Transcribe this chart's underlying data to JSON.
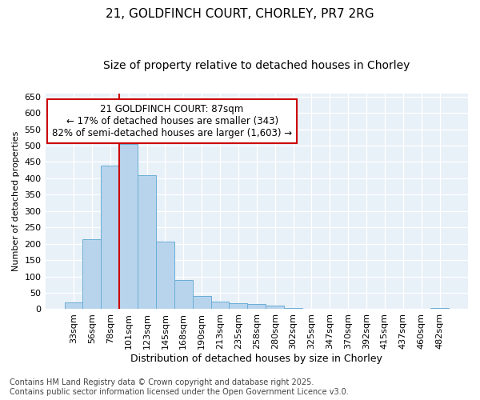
{
  "title1": "21, GOLDFINCH COURT, CHORLEY, PR7 2RG",
  "title2": "Size of property relative to detached houses in Chorley",
  "xlabel": "Distribution of detached houses by size in Chorley",
  "ylabel": "Number of detached properties",
  "categories": [
    "33sqm",
    "56sqm",
    "78sqm",
    "101sqm",
    "123sqm",
    "145sqm",
    "168sqm",
    "190sqm",
    "213sqm",
    "235sqm",
    "258sqm",
    "280sqm",
    "302sqm",
    "325sqm",
    "347sqm",
    "370sqm",
    "392sqm",
    "415sqm",
    "437sqm",
    "460sqm",
    "482sqm"
  ],
  "values": [
    20,
    215,
    440,
    505,
    410,
    207,
    88,
    40,
    22,
    18,
    15,
    12,
    4,
    2,
    1,
    0,
    0,
    0,
    0,
    0,
    3
  ],
  "bar_color": "#b8d4ec",
  "bar_edge_color": "#6aaed6",
  "red_line_index": 2,
  "red_line_color": "#cc0000",
  "annotation_text": "21 GOLDFINCH COURT: 87sqm\n← 17% of detached houses are smaller (343)\n82% of semi-detached houses are larger (1,603) →",
  "annotation_box_facecolor": "#ffffff",
  "annotation_box_edgecolor": "#cc0000",
  "ylim": [
    0,
    660
  ],
  "yticks": [
    0,
    50,
    100,
    150,
    200,
    250,
    300,
    350,
    400,
    450,
    500,
    550,
    600,
    650
  ],
  "footer_text": "Contains HM Land Registry data © Crown copyright and database right 2025.\nContains public sector information licensed under the Open Government Licence v3.0.",
  "fig_bg_color": "#ffffff",
  "plot_bg_color": "#e8f0f8",
  "grid_color": "#ffffff",
  "title_fontsize": 11,
  "subtitle_fontsize": 10,
  "xlabel_fontsize": 9,
  "ylabel_fontsize": 8,
  "tick_fontsize": 8,
  "footer_fontsize": 7
}
